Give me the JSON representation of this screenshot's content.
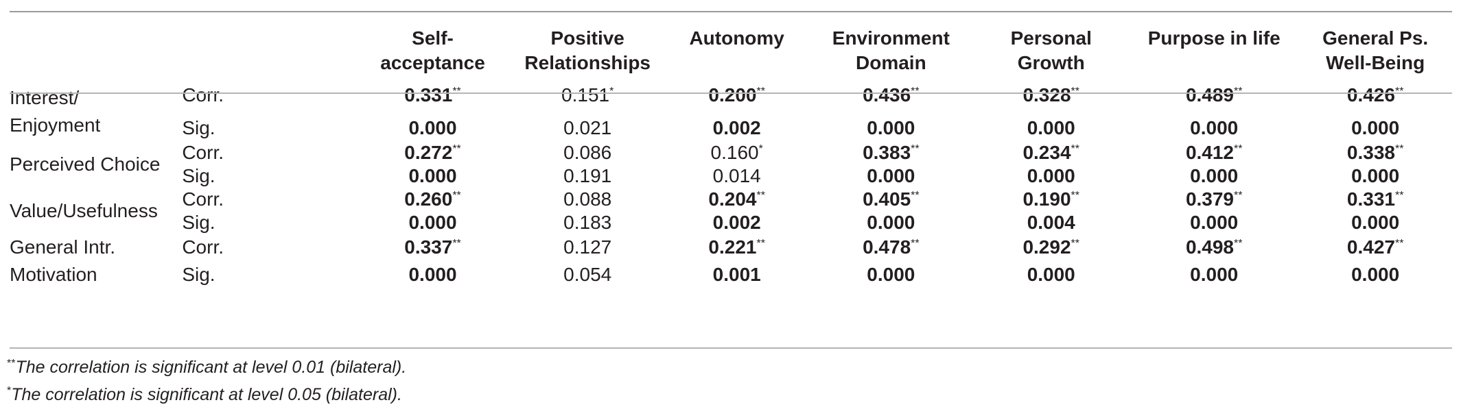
{
  "columns": [
    "",
    "",
    "Self-acceptance",
    "Positive Relationships",
    "Autonomy",
    "Environment Domain",
    "Personal Growth",
    "Purpose in life",
    "General Ps. Well-Being"
  ],
  "column_lines": [
    [
      "Self-",
      "acceptance"
    ],
    [
      "Positive",
      "Relationships"
    ],
    [
      "Autonomy"
    ],
    [
      "Environment",
      "Domain"
    ],
    [
      "Personal",
      "Growth"
    ],
    [
      "Purpose in life"
    ],
    [
      "General Ps.",
      "Well-Being"
    ]
  ],
  "rows": [
    {
      "variable_lines": [
        "Interest/",
        "Enjoyment"
      ],
      "corr_label": "Corr.",
      "sig_label": "Sig.",
      "corr": [
        {
          "v": "0.331",
          "sup": "**",
          "bold": true
        },
        {
          "v": "0.151",
          "sup": "*",
          "bold": false
        },
        {
          "v": "0.200",
          "sup": "**",
          "bold": true
        },
        {
          "v": "0.436",
          "sup": "**",
          "bold": true
        },
        {
          "v": "0.328",
          "sup": "**",
          "bold": true
        },
        {
          "v": "0.489",
          "sup": "**",
          "bold": true
        },
        {
          "v": "0.426",
          "sup": "**",
          "bold": true
        }
      ],
      "sig": [
        {
          "v": "0.000",
          "bold": true
        },
        {
          "v": "0.021",
          "bold": false
        },
        {
          "v": "0.002",
          "bold": true
        },
        {
          "v": "0.000",
          "bold": true
        },
        {
          "v": "0.000",
          "bold": true
        },
        {
          "v": "0.000",
          "bold": true
        },
        {
          "v": "0.000",
          "bold": true
        }
      ]
    },
    {
      "variable_lines": [
        "Perceived Choice"
      ],
      "corr_label": "Corr.",
      "sig_label": "Sig.",
      "corr": [
        {
          "v": "0.272",
          "sup": "**",
          "bold": true
        },
        {
          "v": "0.086",
          "sup": "",
          "bold": false
        },
        {
          "v": "0.160",
          "sup": "*",
          "bold": false
        },
        {
          "v": "0.383",
          "sup": "**",
          "bold": true
        },
        {
          "v": "0.234",
          "sup": "**",
          "bold": true
        },
        {
          "v": "0.412",
          "sup": "**",
          "bold": true
        },
        {
          "v": "0.338",
          "sup": "**",
          "bold": true
        }
      ],
      "sig": [
        {
          "v": "0.000",
          "bold": true
        },
        {
          "v": "0.191",
          "bold": false
        },
        {
          "v": "0.014",
          "bold": false
        },
        {
          "v": "0.000",
          "bold": true
        },
        {
          "v": "0.000",
          "bold": true
        },
        {
          "v": "0.000",
          "bold": true
        },
        {
          "v": "0.000",
          "bold": true
        }
      ]
    },
    {
      "variable_lines": [
        "Value/Usefulness"
      ],
      "corr_label": "Corr.",
      "sig_label": "Sig.",
      "corr": [
        {
          "v": "0.260",
          "sup": "**",
          "bold": true
        },
        {
          "v": "0.088",
          "sup": "",
          "bold": false
        },
        {
          "v": "0.204",
          "sup": "**",
          "bold": true
        },
        {
          "v": "0.405",
          "sup": "**",
          "bold": true
        },
        {
          "v": "0.190",
          "sup": "**",
          "bold": true
        },
        {
          "v": "0.379",
          "sup": "**",
          "bold": true
        },
        {
          "v": "0.331",
          "sup": "**",
          "bold": true
        }
      ],
      "sig": [
        {
          "v": "0.000",
          "bold": true
        },
        {
          "v": "0.183",
          "bold": false
        },
        {
          "v": "0.002",
          "bold": true
        },
        {
          "v": "0.000",
          "bold": true
        },
        {
          "v": "0.004",
          "bold": true
        },
        {
          "v": "0.000",
          "bold": true
        },
        {
          "v": "0.000",
          "bold": true
        }
      ]
    },
    {
      "variable_lines": [
        "General Intr.",
        "Motivation"
      ],
      "corr_label": "Corr.",
      "sig_label": "Sig.",
      "corr": [
        {
          "v": "0.337",
          "sup": "**",
          "bold": true
        },
        {
          "v": "0.127",
          "sup": "",
          "bold": false
        },
        {
          "v": "0.221",
          "sup": "**",
          "bold": true
        },
        {
          "v": "0.478",
          "sup": "**",
          "bold": true
        },
        {
          "v": "0.292",
          "sup": "**",
          "bold": true
        },
        {
          "v": "0.498",
          "sup": "**",
          "bold": true
        },
        {
          "v": "0.427",
          "sup": "**",
          "bold": true
        }
      ],
      "sig": [
        {
          "v": "0.000",
          "bold": true
        },
        {
          "v": "0.054",
          "bold": false
        },
        {
          "v": "0.001",
          "bold": true
        },
        {
          "v": "0.000",
          "bold": true
        },
        {
          "v": "0.000",
          "bold": true
        },
        {
          "v": "0.000",
          "bold": true
        },
        {
          "v": "0.000",
          "bold": true
        }
      ]
    }
  ],
  "notes": [
    {
      "mark": "**",
      "text": "The correlation is significant at level 0.01 (bilateral)."
    },
    {
      "mark": "*",
      "text": "The correlation is significant at level 0.05 (bilateral)."
    }
  ],
  "colors": {
    "text": "#231f20",
    "rule": "#9a9a9a"
  }
}
